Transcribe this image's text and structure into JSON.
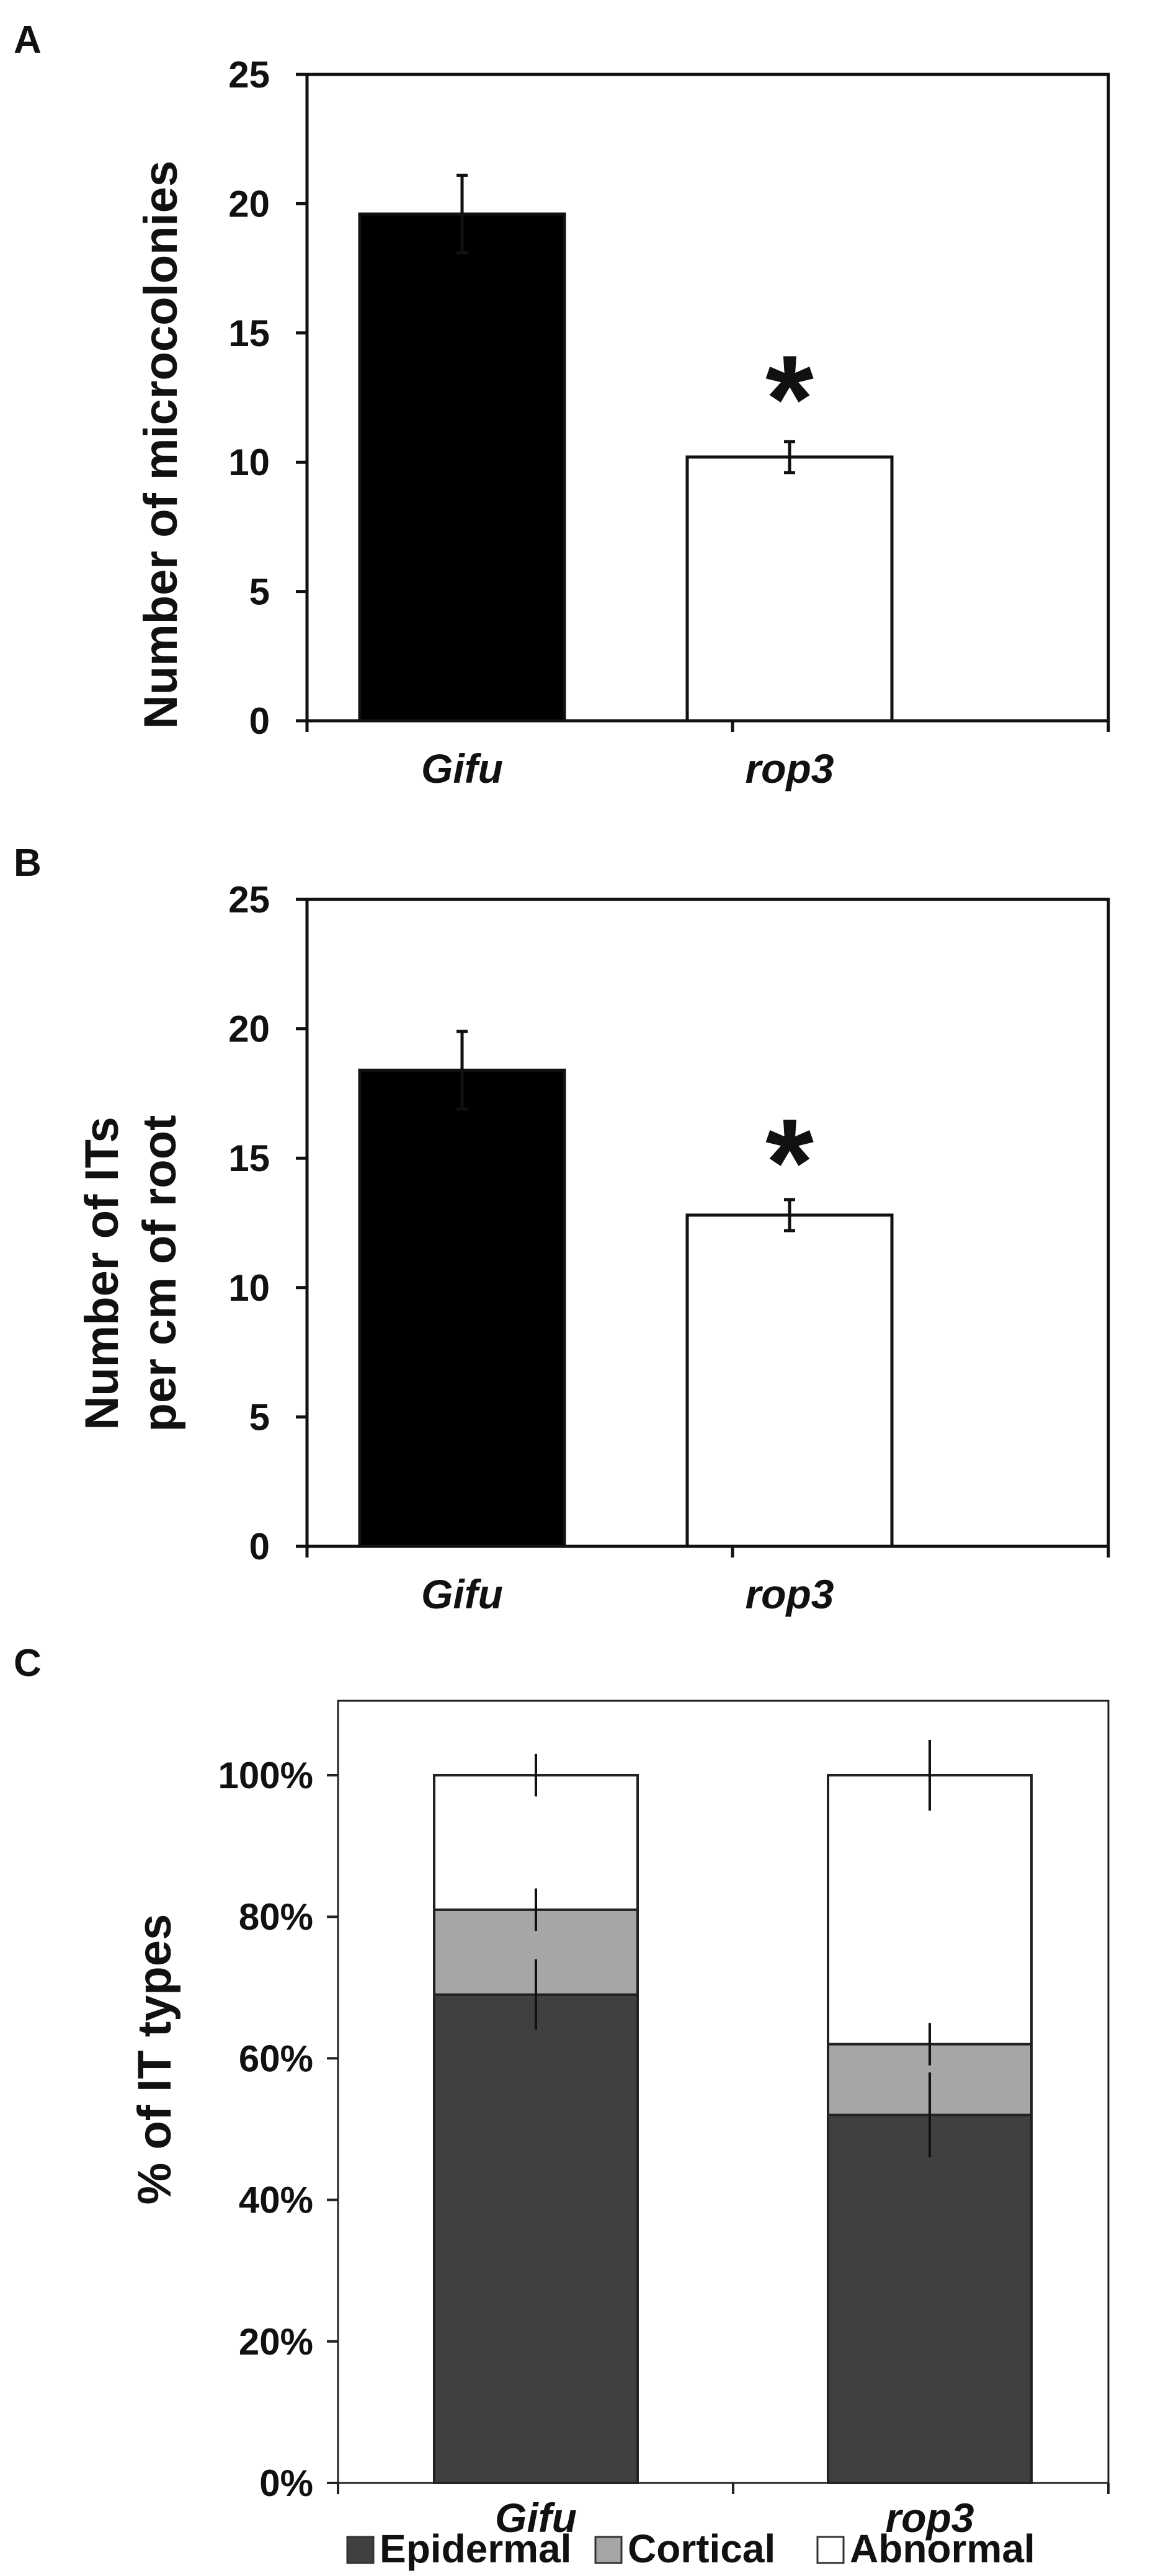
{
  "chart_data": [
    {
      "panel": "A",
      "type": "bar",
      "categories": [
        "Gifu",
        "rop3"
      ],
      "values": [
        19.6,
        10.2
      ],
      "errors": [
        1.5,
        0.6
      ],
      "bar_colors": [
        "#000000",
        "#ffffff"
      ],
      "ylabel": "Number of microcolonies",
      "xlabel": "",
      "ylim": [
        0,
        25
      ],
      "yticks": [
        "0",
        "5",
        "10",
        "15",
        "20",
        "25"
      ],
      "annotations": [
        {
          "category": "rop3",
          "text": "*"
        }
      ],
      "grid": false
    },
    {
      "panel": "B",
      "type": "bar",
      "categories": [
        "Gifu",
        "rop3"
      ],
      "values": [
        18.4,
        12.8
      ],
      "errors": [
        1.5,
        0.6
      ],
      "bar_colors": [
        "#000000",
        "#ffffff"
      ],
      "ylabel_lines": [
        "Number of ITs",
        "per cm of root"
      ],
      "xlabel": "",
      "ylim": [
        0,
        25
      ],
      "yticks": [
        "0",
        "5",
        "10",
        "15",
        "20",
        "25"
      ],
      "annotations": [
        {
          "category": "rop3",
          "text": "*"
        }
      ],
      "grid": false
    },
    {
      "panel": "C",
      "type": "bar",
      "stacked": true,
      "categories": [
        "Gifu",
        "rop3"
      ],
      "series": [
        {
          "name": "Epidermal",
          "values": [
            69,
            52
          ],
          "errors": [
            5,
            6
          ],
          "color": "#404040"
        },
        {
          "name": "Cortical",
          "values": [
            12,
            10
          ],
          "errors": [
            3,
            3
          ],
          "color": "#a6a6a6"
        },
        {
          "name": "Abnormal",
          "values": [
            19,
            38
          ],
          "errors": [
            3,
            5
          ],
          "color": "#ffffff"
        }
      ],
      "ylabel": "% of IT types",
      "xlabel": "",
      "ylim": [
        0,
        110
      ],
      "yticks": [
        "0%",
        "20%",
        "40%",
        "60%",
        "80%",
        "100%"
      ],
      "legend_position": "bottom",
      "grid": false
    }
  ]
}
